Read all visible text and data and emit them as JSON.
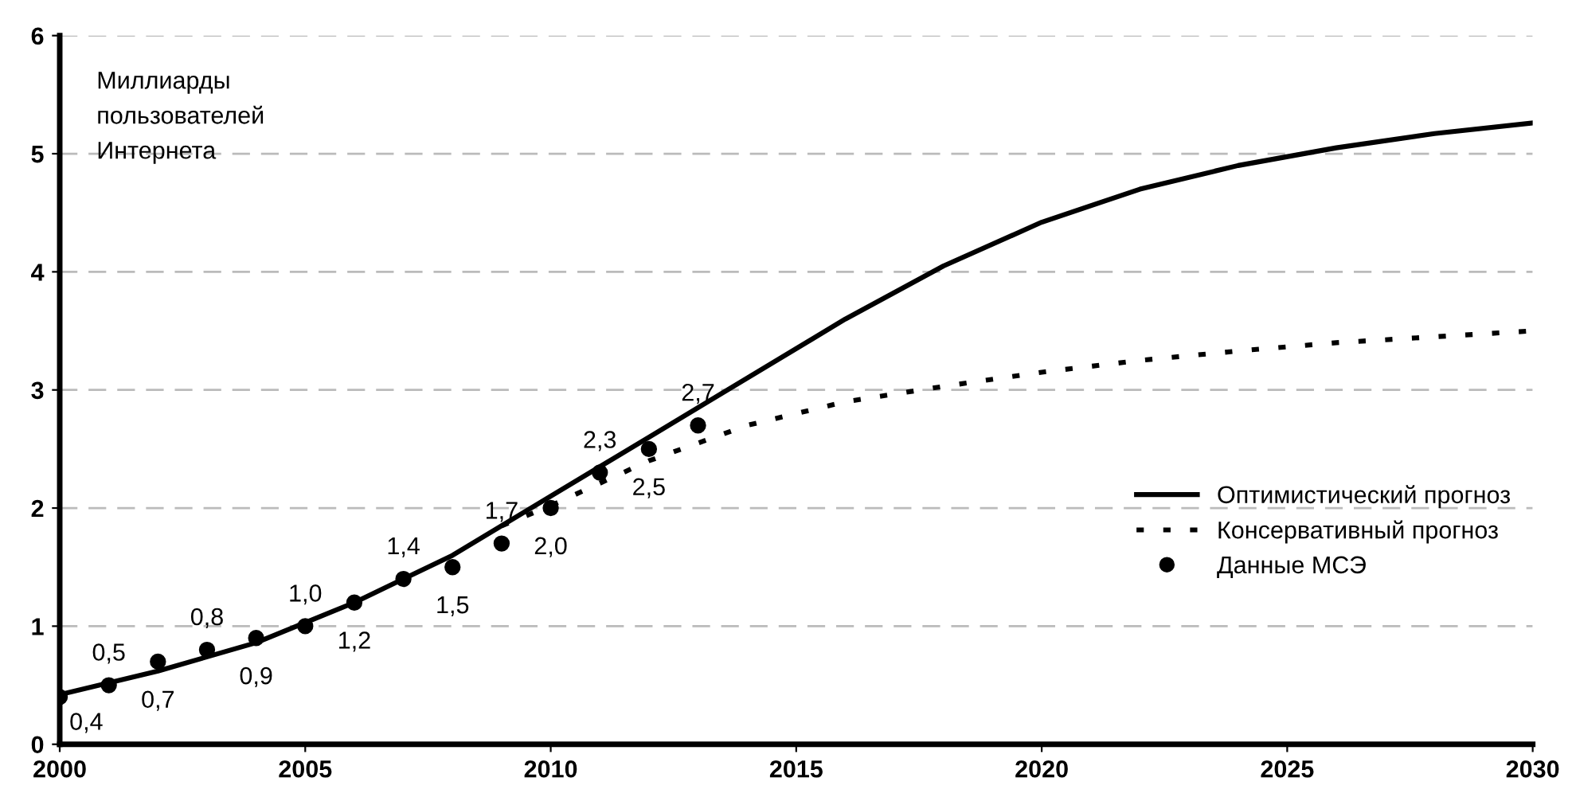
{
  "chart_data": {
    "type": "line",
    "annotations": [
      "Миллиарды\nпользователей\nИнтернета"
    ],
    "xlim": [
      2000,
      2030
    ],
    "xticks": [
      2000,
      2005,
      2010,
      2015,
      2020,
      2025,
      2030
    ],
    "ylim": [
      0,
      6
    ],
    "yticks": [
      0,
      1,
      2,
      3,
      4,
      5,
      6
    ],
    "grid": "y",
    "legend": "right",
    "series": [
      {
        "name": "Оптимистический прогноз",
        "line_style": "solid",
        "color": "#000000",
        "x": [
          2000,
          2002,
          2004,
          2006,
          2008,
          2010,
          2012,
          2014,
          2016,
          2018,
          2020,
          2022,
          2024,
          2026,
          2028,
          2030
        ],
        "values": [
          0.42,
          0.62,
          0.86,
          1.2,
          1.6,
          2.1,
          2.6,
          3.1,
          3.6,
          4.05,
          4.42,
          4.7,
          4.9,
          5.05,
          5.17,
          5.26
        ]
      },
      {
        "name": "Консервативный прогноз",
        "line_style": "dotted",
        "color": "#000000",
        "x": [
          2009,
          2010,
          2012,
          2014,
          2016,
          2018,
          2020,
          2022,
          2024,
          2026,
          2028,
          2030
        ],
        "values": [
          1.85,
          2.02,
          2.4,
          2.7,
          2.9,
          3.03,
          3.15,
          3.25,
          3.33,
          3.4,
          3.45,
          3.5
        ]
      },
      {
        "name": "Данные МСЭ",
        "type": "scatter",
        "marker": "circle",
        "color": "#000000",
        "x": [
          2000,
          2001,
          2002,
          2003,
          2004,
          2005,
          2006,
          2007,
          2008,
          2009,
          2010,
          2011,
          2012,
          2013
        ],
        "values": [
          0.4,
          0.5,
          0.7,
          0.8,
          0.9,
          1.0,
          1.2,
          1.4,
          1.5,
          1.7,
          2.0,
          2.3,
          2.5,
          2.7
        ],
        "value_labels": [
          "0,4",
          "0,5",
          "0,7",
          "0,8",
          "0,9",
          "1,0",
          "1,2",
          "1,4",
          "1,5",
          "1,7",
          "2,0",
          "2,3",
          "2,5",
          "2,7"
        ]
      }
    ]
  }
}
